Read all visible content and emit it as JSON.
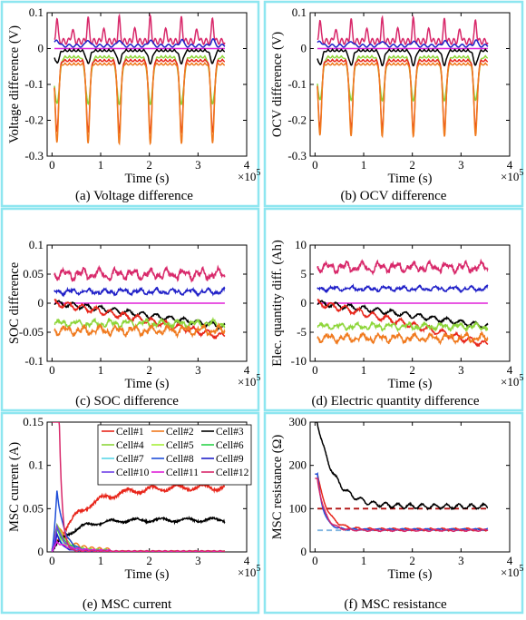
{
  "colors": {
    "frame": "#8ee6f0",
    "cell1": "#e8261b",
    "cell2": "#f07a1e",
    "cell3": "#000000",
    "cell4": "#8ed63a",
    "cell5": "#a7f039",
    "cell6": "#2bd34a",
    "cell7": "#5ad6e8",
    "cell8": "#1f4ed8",
    "cell9": "#2020c8",
    "cell10": "#6f40e8",
    "cell11": "#e020d8",
    "cell12": "#d8286a",
    "dash_red": "#b01010",
    "dash_blue": "#7fb4e0"
  },
  "chart_data": [
    {
      "id": "a",
      "type": "line",
      "caption": "(a) Voltage difference",
      "xlabel": "Time (s)",
      "ylabel": "Voltage difference (V)",
      "x_exponent": "×10",
      "x_exponent_power": "5",
      "xlim": [
        -0.1,
        4
      ],
      "ylim": [
        -0.3,
        0.1
      ],
      "xticks": [
        "0",
        "1",
        "2",
        "3",
        "4"
      ],
      "yticks": [
        "-0.3",
        "-0.2",
        "-0.1",
        "0",
        "0.1"
      ],
      "x_range": [
        0.05,
        3.55
      ],
      "period": 0.64,
      "series": [
        {
          "name": "Cell#12",
          "color": "#d8286a",
          "kind": "spikes_up",
          "base": 0.02,
          "amp": 0.065,
          "alt_amp": 0.03
        },
        {
          "name": "Cell#9",
          "color": "#2020c8",
          "kind": "bumps",
          "base": 0.008,
          "amp": 0.018
        },
        {
          "name": "Cell#11",
          "color": "#e020d8",
          "kind": "flat",
          "base": 0.0
        },
        {
          "name": "Cell#3",
          "color": "#000000",
          "kind": "dips",
          "base": -0.002,
          "amp": 0.035,
          "w": 0.06
        },
        {
          "name": "Cell#4",
          "color": "#8ed63a",
          "kind": "dips",
          "base": -0.02,
          "amp": 0.13,
          "w": 0.07
        },
        {
          "name": "Cell#1",
          "color": "#e8261b",
          "kind": "dips",
          "base": -0.03,
          "amp": 0.2,
          "w": 0.05
        },
        {
          "name": "Cell#2",
          "color": "#f07a1e",
          "kind": "dips",
          "base": -0.04,
          "amp": 0.22,
          "w": 0.045
        }
      ]
    },
    {
      "id": "b",
      "type": "line",
      "caption": "(b) OCV difference",
      "xlabel": "Time (s)",
      "ylabel": "OCV difference (V)",
      "x_exponent": "×10",
      "x_exponent_power": "5",
      "xlim": [
        -0.1,
        4
      ],
      "ylim": [
        -0.3,
        0.1
      ],
      "xticks": [
        "0",
        "1",
        "2",
        "3",
        "4"
      ],
      "yticks": [
        "-0.3",
        "-0.2",
        "-0.1",
        "0",
        "0.1"
      ],
      "x_range": [
        0.05,
        3.55
      ],
      "period": 0.64,
      "series": [
        {
          "name": "Cell#12",
          "color": "#d8286a",
          "kind": "spikes_up",
          "base": 0.02,
          "amp": 0.06,
          "alt_amp": 0.03
        },
        {
          "name": "Cell#9",
          "color": "#2020c8",
          "kind": "bumps",
          "base": 0.008,
          "amp": 0.015
        },
        {
          "name": "Cell#11",
          "color": "#e020d8",
          "kind": "flat",
          "base": 0.0
        },
        {
          "name": "Cell#3",
          "color": "#000000",
          "kind": "dips",
          "base": -0.002,
          "amp": 0.04,
          "w": 0.06
        },
        {
          "name": "Cell#4",
          "color": "#8ed63a",
          "kind": "dips",
          "base": -0.02,
          "amp": 0.12,
          "w": 0.07
        },
        {
          "name": "Cell#1",
          "color": "#e8261b",
          "kind": "dips",
          "base": -0.03,
          "amp": 0.19,
          "w": 0.05
        },
        {
          "name": "Cell#2",
          "color": "#f07a1e",
          "kind": "dips",
          "base": -0.04,
          "amp": 0.2,
          "w": 0.045
        }
      ]
    },
    {
      "id": "c",
      "type": "line",
      "caption": "(c) SOC difference",
      "xlabel": "Time (s)",
      "ylabel": "SOC difference",
      "x_exponent": "×10",
      "x_exponent_power": "5",
      "xlim": [
        -0.1,
        4
      ],
      "ylim": [
        -0.1,
        0.1
      ],
      "xticks": [
        "0",
        "1",
        "2",
        "3",
        "4"
      ],
      "yticks": [
        "-0.1",
        "-0.05",
        "0",
        "0.05",
        "0.1"
      ],
      "x_range": [
        0.05,
        3.55
      ],
      "series": [
        {
          "name": "Cell#12",
          "color": "#d8286a",
          "kind": "noisy",
          "base": 0.05,
          "amp": 0.012,
          "seed": 3
        },
        {
          "name": "Cell#9",
          "color": "#2020c8",
          "kind": "noisy",
          "base": 0.02,
          "amp": 0.006,
          "seed": 7
        },
        {
          "name": "Cell#11",
          "color": "#e020d8",
          "kind": "flat",
          "base": 0.0
        },
        {
          "name": "Cell#3",
          "color": "#000000",
          "kind": "drift",
          "start": 0.0,
          "end": -0.04,
          "amp": 0.004,
          "seed": 11
        },
        {
          "name": "Cell#1",
          "color": "#e8261b",
          "kind": "drift",
          "start": 0.0,
          "end": -0.058,
          "amp": 0.005,
          "seed": 13
        },
        {
          "name": "Cell#4",
          "color": "#8ed63a",
          "kind": "noisy",
          "base": -0.035,
          "amp": 0.008,
          "seed": 5
        },
        {
          "name": "Cell#2",
          "color": "#f07a1e",
          "kind": "noisy",
          "base": -0.047,
          "amp": 0.01,
          "seed": 9
        }
      ]
    },
    {
      "id": "d",
      "type": "line",
      "caption": "(d) Electric quantity difference",
      "xlabel": "Time (s)",
      "ylabel": "Elec. quantity diff. (Ah)",
      "x_exponent": "×10",
      "x_exponent_power": "5",
      "xlim": [
        -0.1,
        4
      ],
      "ylim": [
        -10,
        10
      ],
      "xticks": [
        "0",
        "1",
        "2",
        "3",
        "4"
      ],
      "yticks": [
        "-10",
        "-5",
        "0",
        "5",
        "10"
      ],
      "x_range": [
        0.05,
        3.55
      ],
      "series": [
        {
          "name": "Cell#12",
          "color": "#d8286a",
          "kind": "noisy",
          "base": 6.2,
          "amp": 1.1,
          "seed": 3
        },
        {
          "name": "Cell#9",
          "color": "#2020c8",
          "kind": "noisy",
          "base": 2.5,
          "amp": 0.5,
          "seed": 7
        },
        {
          "name": "Cell#11",
          "color": "#e020d8",
          "kind": "flat",
          "base": 0.0
        },
        {
          "name": "Cell#3",
          "color": "#000000",
          "kind": "drift",
          "start": 0.0,
          "end": -4.0,
          "amp": 0.4,
          "seed": 11
        },
        {
          "name": "Cell#1",
          "color": "#e8261b",
          "kind": "drift",
          "start": 0.0,
          "end": -7.2,
          "amp": 0.5,
          "seed": 13
        },
        {
          "name": "Cell#4",
          "color": "#8ed63a",
          "kind": "noisy",
          "base": -4.0,
          "amp": 0.7,
          "seed": 5
        },
        {
          "name": "Cell#2",
          "color": "#f07a1e",
          "kind": "noisy",
          "base": -6.0,
          "amp": 0.9,
          "seed": 9
        }
      ]
    },
    {
      "id": "e",
      "type": "line",
      "caption": "(e) MSC current",
      "xlabel": "Time (s)",
      "ylabel": "MSC current (A)",
      "x_exponent": "×10",
      "x_exponent_power": "5",
      "xlim": [
        -0.1,
        4
      ],
      "ylim": [
        0,
        0.15
      ],
      "xticks": [
        "0",
        "1",
        "2",
        "3",
        "4"
      ],
      "yticks": [
        "0",
        "0.05",
        "0.1",
        "0.15"
      ],
      "x_range": [
        0.0,
        3.55
      ],
      "series": [
        {
          "name": "Cell#1",
          "color": "#e8261b",
          "kind": "rise",
          "from": 0.0,
          "to": 0.075,
          "tau": 0.6,
          "amp": 0.003,
          "seed": 2
        },
        {
          "name": "Cell#2",
          "color": "#f07a1e",
          "kind": "decay",
          "peak": 0.03,
          "tau": 0.25,
          "amp": 0.004,
          "seed": 4
        },
        {
          "name": "Cell#3",
          "color": "#000000",
          "kind": "rise",
          "from": 0.0,
          "to": 0.037,
          "tau": 0.4,
          "amp": 0.002,
          "seed": 6
        },
        {
          "name": "Cell#4",
          "color": "#8ed63a",
          "kind": "decay",
          "peak": 0.03,
          "tau": 0.2,
          "amp": 0.003,
          "seed": 8
        },
        {
          "name": "Cell#5",
          "color": "#a7f039",
          "kind": "decay",
          "peak": 0.02,
          "tau": 0.2,
          "amp": 0.002,
          "seed": 10
        },
        {
          "name": "Cell#6",
          "color": "#2bd34a",
          "kind": "decay",
          "peak": 0.025,
          "tau": 0.2,
          "amp": 0.002,
          "seed": 12
        },
        {
          "name": "Cell#7",
          "color": "#5ad6e8",
          "kind": "decay",
          "peak": 0.02,
          "tau": 0.15,
          "amp": 0.001,
          "seed": 14
        },
        {
          "name": "Cell#8",
          "color": "#1f4ed8",
          "kind": "decay",
          "peak": 0.07,
          "tau": 0.15,
          "amp": 0.002,
          "seed": 16
        },
        {
          "name": "Cell#9",
          "color": "#2020c8",
          "kind": "decay",
          "peak": 0.02,
          "tau": 0.12,
          "amp": 0.001,
          "seed": 18
        },
        {
          "name": "Cell#10",
          "color": "#6f40e8",
          "kind": "decay",
          "peak": 0.03,
          "tau": 0.15,
          "amp": 0.002,
          "seed": 20
        },
        {
          "name": "Cell#11",
          "color": "#e020d8",
          "kind": "decay",
          "peak": 0.01,
          "tau": 0.3,
          "amp": 0.002,
          "seed": 22
        },
        {
          "name": "Cell#12",
          "color": "#d8286a",
          "kind": "spike",
          "peak": 0.15,
          "tau": 0.06,
          "amp": 0.0015,
          "seed": 24
        }
      ],
      "legend": [
        "Cell#1",
        "Cell#2",
        "Cell#3",
        "Cell#4",
        "Cell#5",
        "Cell#6",
        "Cell#7",
        "Cell#8",
        "Cell#9",
        "Cell#10",
        "Cell#11",
        "Cell#12"
      ],
      "legend_position": "top-right"
    },
    {
      "id": "f",
      "type": "line",
      "caption": "(f) MSC resistance",
      "xlabel": "Time (s)",
      "ylabel": "MSC resistance (Ω)",
      "x_exponent": "×10",
      "x_exponent_power": "5",
      "xlim": [
        -0.1,
        4
      ],
      "ylim": [
        0,
        300
      ],
      "xticks": [
        "0",
        "1",
        "2",
        "3",
        "4"
      ],
      "yticks": [
        "0",
        "100",
        "200",
        "300"
      ],
      "x_range": [
        0.0,
        3.55
      ],
      "reference_lines": [
        {
          "value": 100,
          "color": "#b01010",
          "from": 0.05,
          "to": 3.55
        },
        {
          "value": 50,
          "color": "#7fb4e0",
          "from": 0.05,
          "to": 3.55
        }
      ],
      "series": [
        {
          "name": "Cell#3",
          "color": "#000000",
          "kind": "settle",
          "peak": 300,
          "final": 105,
          "tau": 0.35,
          "amp": 5,
          "seed": 3
        },
        {
          "name": "Cell#1",
          "color": "#e8261b",
          "kind": "settle",
          "peak": 180,
          "final": 52,
          "tau": 0.2,
          "amp": 2.5,
          "seed": 5
        },
        {
          "name": "Cell#8",
          "color": "#1f4ed8",
          "kind": "settle",
          "peak": 180,
          "final": 52,
          "tau": 0.12,
          "amp": 1.5,
          "seed": 7
        },
        {
          "name": "Cell#12",
          "color": "#d8286a",
          "kind": "settle",
          "peak": 170,
          "final": 50,
          "tau": 0.15,
          "amp": 2,
          "seed": 9
        }
      ]
    }
  ]
}
